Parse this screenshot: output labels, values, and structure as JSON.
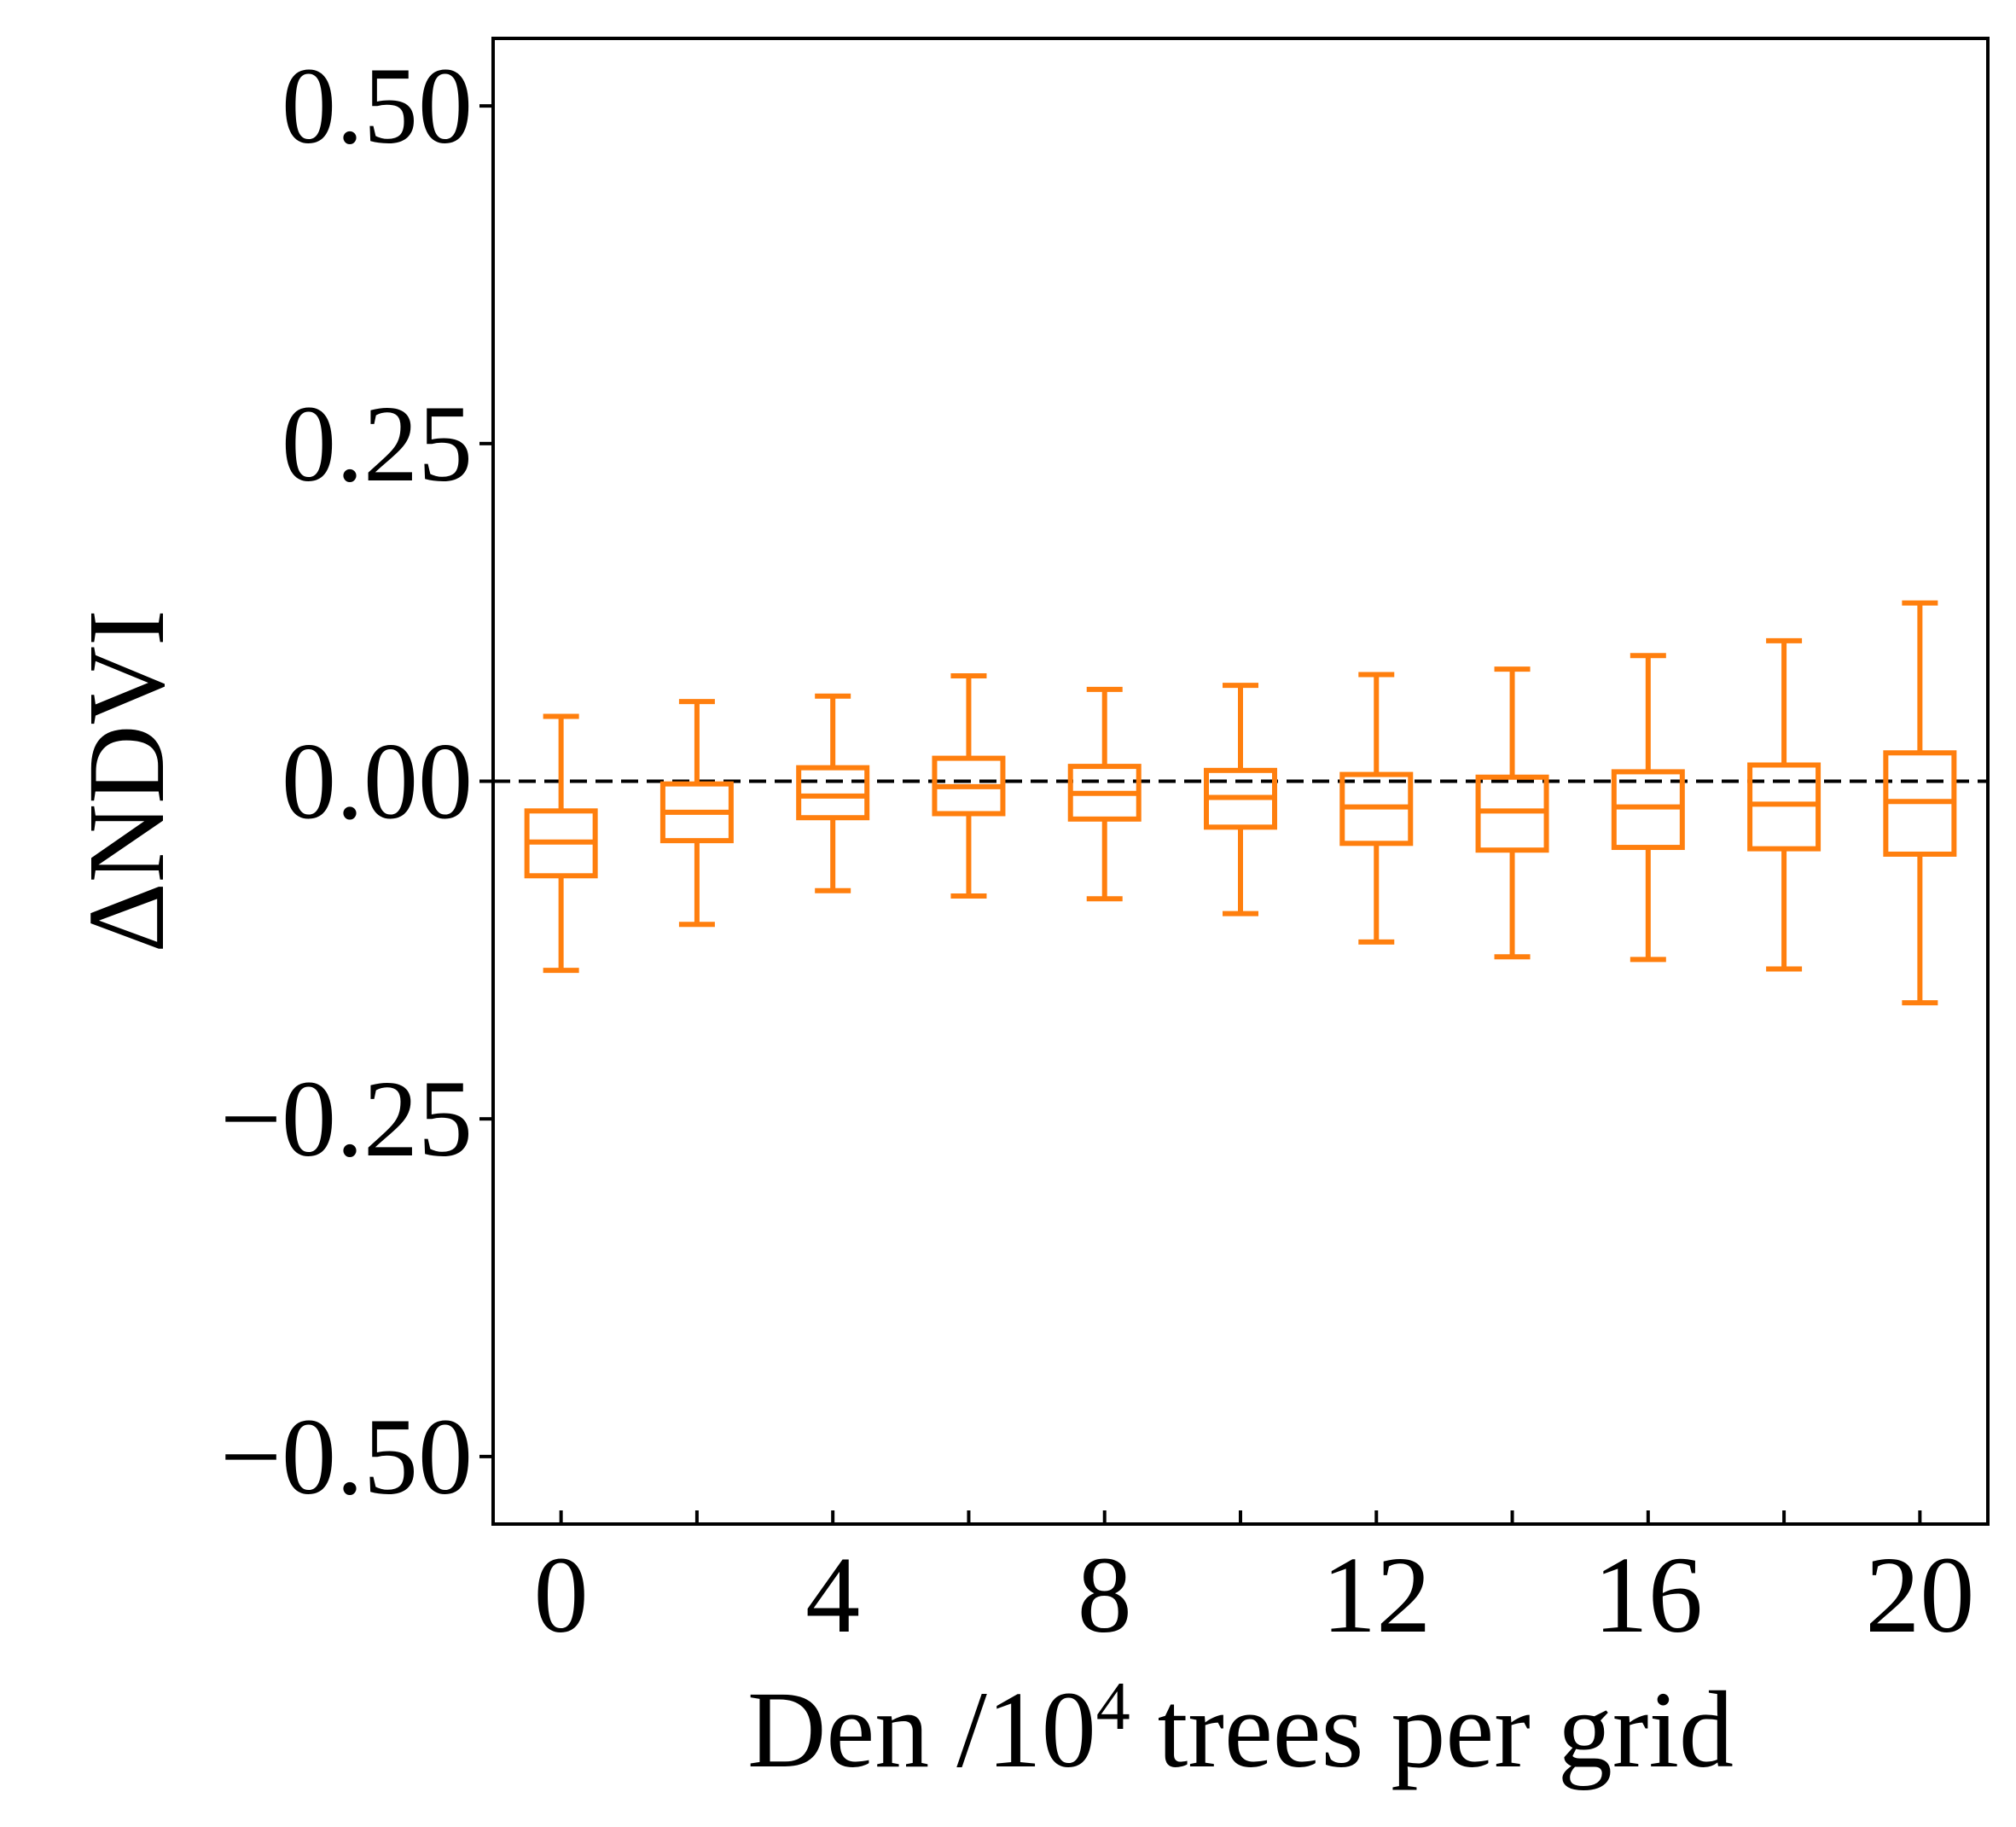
{
  "chart_data": {
    "type": "box",
    "xlabel_parts": {
      "prefix": "Den /10",
      "superscript": "4",
      "suffix": " trees per grid"
    },
    "ylabel": "ΔNDVI",
    "xlim": [
      -1,
      21
    ],
    "ylim": [
      -0.55,
      0.55
    ],
    "x_ticks": [
      0,
      2,
      4,
      6,
      8,
      10,
      12,
      14,
      16,
      18,
      20
    ],
    "x_tick_labels": [
      {
        "value": 0,
        "label": "0"
      },
      {
        "value": 4,
        "label": "4"
      },
      {
        "value": 8,
        "label": "8"
      },
      {
        "value": 12,
        "label": "12"
      },
      {
        "value": 16,
        "label": "16"
      },
      {
        "value": 20,
        "label": "20"
      }
    ],
    "y_ticks": [
      {
        "value": 0.5,
        "label": "0.50"
      },
      {
        "value": 0.25,
        "label": "0.25"
      },
      {
        "value": 0.0,
        "label": "0.00"
      },
      {
        "value": -0.25,
        "label": "−0.25"
      },
      {
        "value": -0.5,
        "label": "−0.50"
      }
    ],
    "reference_line": {
      "y": 0,
      "style": "dashed",
      "color": "#000000"
    },
    "box_color": "#ff7f0e",
    "boxes": [
      {
        "x": 0,
        "whisker_low": -0.14,
        "q1": -0.07,
        "median": -0.045,
        "q3": -0.022,
        "whisker_high": 0.048
      },
      {
        "x": 2,
        "whisker_low": -0.106,
        "q1": -0.044,
        "median": -0.023,
        "q3": -0.002,
        "whisker_high": 0.059
      },
      {
        "x": 4,
        "whisker_low": -0.081,
        "q1": -0.027,
        "median": -0.011,
        "q3": 0.01,
        "whisker_high": 0.063
      },
      {
        "x": 6,
        "whisker_low": -0.085,
        "q1": -0.024,
        "median": -0.004,
        "q3": 0.017,
        "whisker_high": 0.078
      },
      {
        "x": 8,
        "whisker_low": -0.087,
        "q1": -0.028,
        "median": -0.009,
        "q3": 0.011,
        "whisker_high": 0.068
      },
      {
        "x": 10,
        "whisker_low": -0.098,
        "q1": -0.034,
        "median": -0.012,
        "q3": 0.008,
        "whisker_high": 0.071
      },
      {
        "x": 12,
        "whisker_low": -0.119,
        "q1": -0.046,
        "median": -0.019,
        "q3": 0.005,
        "whisker_high": 0.079
      },
      {
        "x": 14,
        "whisker_low": -0.13,
        "q1": -0.051,
        "median": -0.022,
        "q3": 0.003,
        "whisker_high": 0.083
      },
      {
        "x": 16,
        "whisker_low": -0.132,
        "q1": -0.049,
        "median": -0.019,
        "q3": 0.007,
        "whisker_high": 0.093
      },
      {
        "x": 18,
        "whisker_low": -0.139,
        "q1": -0.05,
        "median": -0.017,
        "q3": 0.012,
        "whisker_high": 0.104
      },
      {
        "x": 20,
        "whisker_low": -0.164,
        "q1": -0.054,
        "median": -0.015,
        "q3": 0.021,
        "whisker_high": 0.132
      }
    ],
    "grid": false,
    "legend": "none"
  }
}
